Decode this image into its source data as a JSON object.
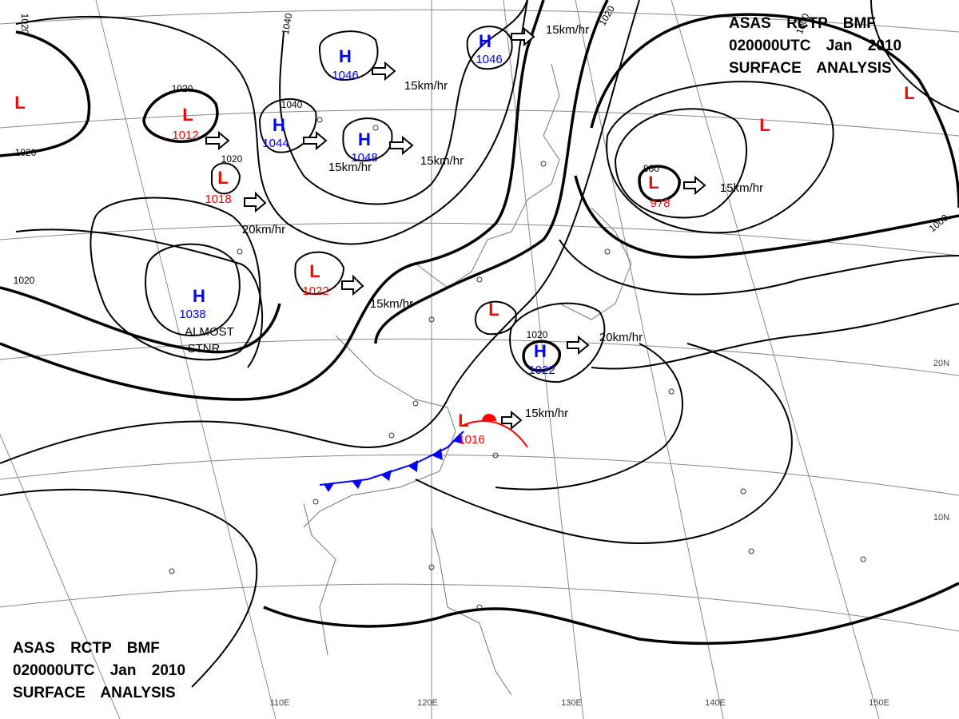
{
  "header": {
    "lines": [
      "ASAS RCTP BMF",
      "020000UTC Jan 2010",
      "SURFACE ANALYSIS"
    ]
  },
  "annotations": [
    "ALMOST",
    "STNR"
  ],
  "centers": [
    {
      "type": "H",
      "pressure": "1046"
    },
    {
      "type": "H",
      "pressure": "1046"
    },
    {
      "type": "H",
      "pressure": "1044"
    },
    {
      "type": "H",
      "pressure": "1048"
    },
    {
      "type": "H",
      "pressure": "1038"
    },
    {
      "type": "H",
      "pressure": "1022"
    },
    {
      "type": "L",
      "pressure": "1012"
    },
    {
      "type": "L",
      "pressure": "1018"
    },
    {
      "type": "L",
      "pressure": "1022"
    },
    {
      "type": "L",
      "pressure": "978"
    },
    {
      "type": "L",
      "pressure": "1016"
    },
    {
      "type": "L",
      "pressure": null
    },
    {
      "type": "L",
      "pressure": null
    },
    {
      "type": "L",
      "pressure": null
    },
    {
      "type": "L",
      "pressure": null
    }
  ],
  "isobar_labels": [
    "1020",
    "1020",
    "1020",
    "1040",
    "1040",
    "1020",
    "1020",
    "1000",
    "1000",
    "980",
    "1020",
    "1020"
  ],
  "motions": [
    "15km/hr",
    "15km/hr",
    "15km/hr",
    "15km/hr",
    "20km/hr",
    "15km/hr",
    "20km/hr",
    "15km/hr",
    "15km/hr"
  ],
  "longitudes": [
    "110E",
    "120E",
    "130E",
    "140E",
    "150E"
  ],
  "latitudes": [
    "20N",
    "10N"
  ]
}
